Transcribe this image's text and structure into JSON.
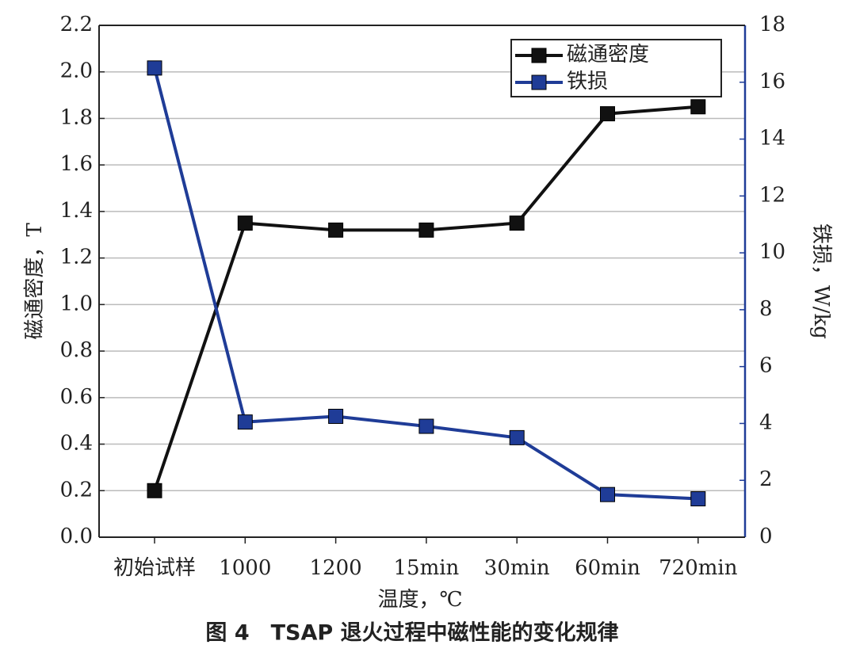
{
  "chart_data": {
    "type": "line",
    "categories": [
      "初始试样",
      "1000",
      "1200",
      "15min",
      "30min",
      "60min",
      "720min"
    ],
    "series": [
      {
        "name": "磁通密度",
        "color": "#111111",
        "values": [
          0.2,
          1.35,
          1.32,
          1.32,
          1.35,
          1.82,
          1.85
        ]
      },
      {
        "name": "铁损",
        "color": "#1f3c97",
        "axis": "y2",
        "values": [
          16.5,
          4.05,
          4.25,
          3.9,
          3.5,
          1.5,
          1.35
        ]
      }
    ],
    "ylim": [
      0,
      2.2
    ],
    "yticks": [
      {
        "value": 0,
        "label": "0.0"
      },
      0.2,
      0.4,
      0.6,
      0.8,
      {
        "value": 1,
        "label": "1.0"
      },
      1.2,
      1.4,
      1.6,
      1.8,
      {
        "value": 2,
        "label": "2.0"
      },
      2.2
    ],
    "y2lim": [
      0,
      18
    ],
    "y2ticks": [
      0,
      2,
      4,
      6,
      8,
      10,
      12,
      14,
      16,
      18
    ],
    "ylabel": "磁通密度，T",
    "y2label": "铁损，W/kg",
    "xlabel": "温度，℃",
    "caption": "图 4　TSAP 退火过程中磁性能的变化规律",
    "grid": true,
    "legend": "upper right"
  }
}
